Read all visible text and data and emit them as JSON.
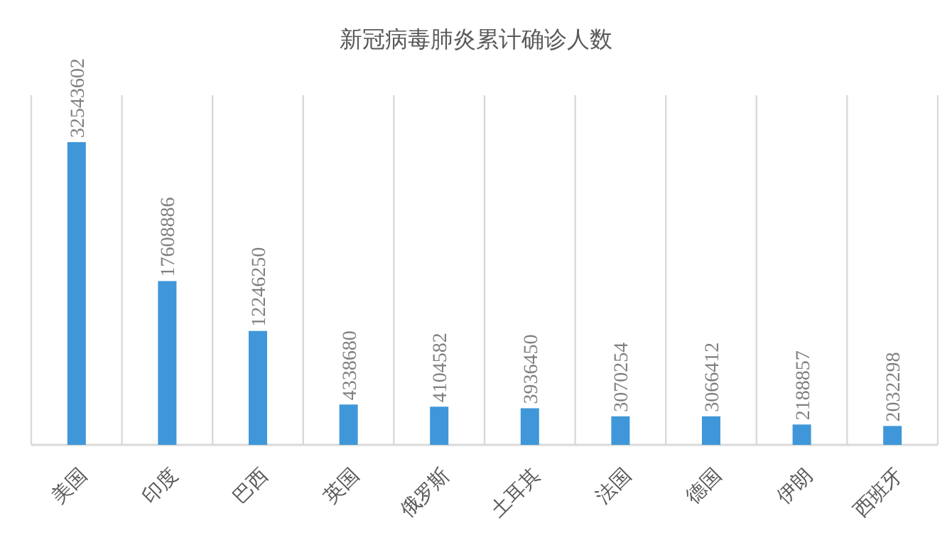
{
  "chart_data": {
    "type": "bar",
    "title": "新冠病毒肺炎累计确诊人数",
    "categories": [
      "美国",
      "印度",
      "巴西",
      "英国",
      "俄罗斯",
      "土耳其",
      "法国",
      "德国",
      "伊朗",
      "西班牙"
    ],
    "values": [
      32543602,
      17608886,
      12246250,
      4338680,
      4104582,
      3936450,
      3070254,
      3066412,
      2188857,
      2032298
    ],
    "color": "#3f97d9",
    "data_labels": true
  }
}
